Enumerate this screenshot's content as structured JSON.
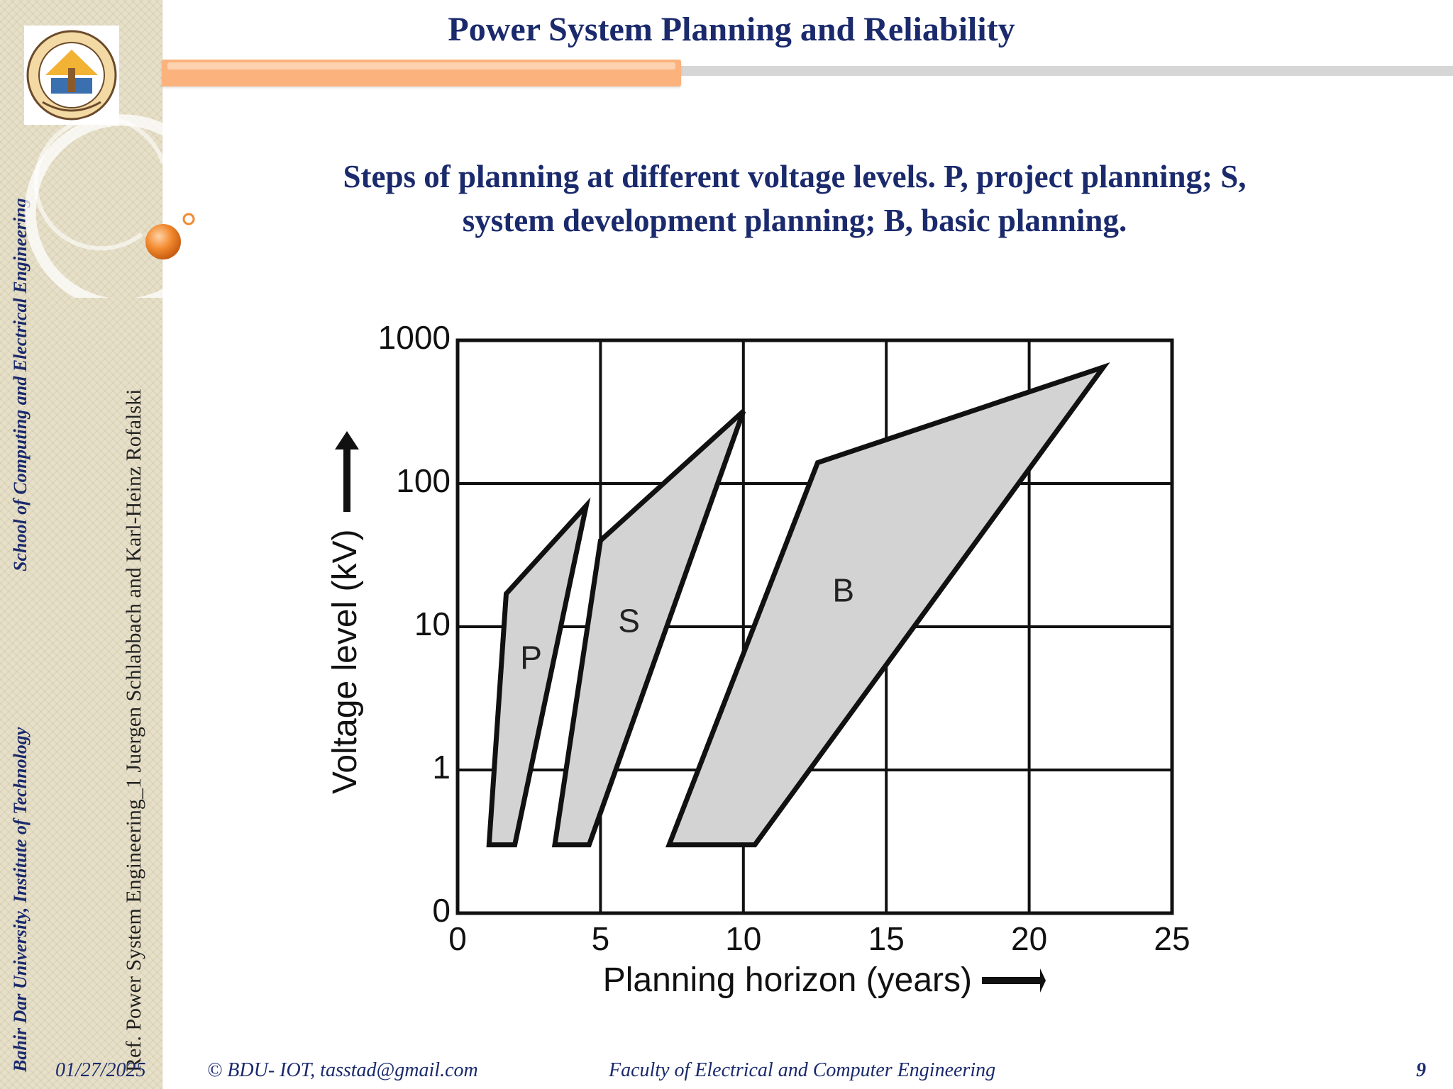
{
  "slide": {
    "title": "Power System Planning and Reliability",
    "subtitle_line1": "Steps of planning at different voltage levels. P, project planning; S,",
    "subtitle_line2": "system development planning; B, basic planning."
  },
  "sidebar": {
    "institution": "Bahir Dar  University, Institute of Technology",
    "school": "School of Computing and  Electrical Engineering",
    "reference": "Ref.  Power System Engineering_1  Juergen  Schlabbach and Karl-Heinz Rofalski"
  },
  "footer": {
    "date": "01/27/2025",
    "copyright": "© BDU- IOT, tasstad@gmail.com",
    "faculty": "Faculty  of  Electrical and Computer Engineering",
    "page": "9"
  },
  "colors": {
    "navy": "#1a2a6c",
    "orange": "#fbb27d",
    "region_fill": "#d3d3d3"
  },
  "chart_data": {
    "type": "area",
    "xlabel": "Planning horizon (years)",
    "ylabel": "Voltage level (kV)",
    "xlim": [
      0,
      25
    ],
    "x_ticks": [
      "0",
      "5",
      "10",
      "15",
      "20",
      "25"
    ],
    "y_ticks": [
      "0",
      "1",
      "10",
      "100",
      "1000"
    ],
    "y_scale": "log",
    "grid": true,
    "series": [
      {
        "name": "P",
        "points": [
          [
            1.1,
            0.3
          ],
          [
            2.0,
            0.3
          ],
          [
            4.5,
            70
          ],
          [
            1.7,
            17
          ]
        ]
      },
      {
        "name": "S",
        "points": [
          [
            3.4,
            0.3
          ],
          [
            4.6,
            0.3
          ],
          [
            10.0,
            320
          ],
          [
            5.0,
            40
          ]
        ]
      },
      {
        "name": "B",
        "points": [
          [
            7.4,
            0.3
          ],
          [
            10.4,
            0.3
          ],
          [
            22.6,
            650
          ],
          [
            12.6,
            140
          ]
        ]
      }
    ]
  }
}
